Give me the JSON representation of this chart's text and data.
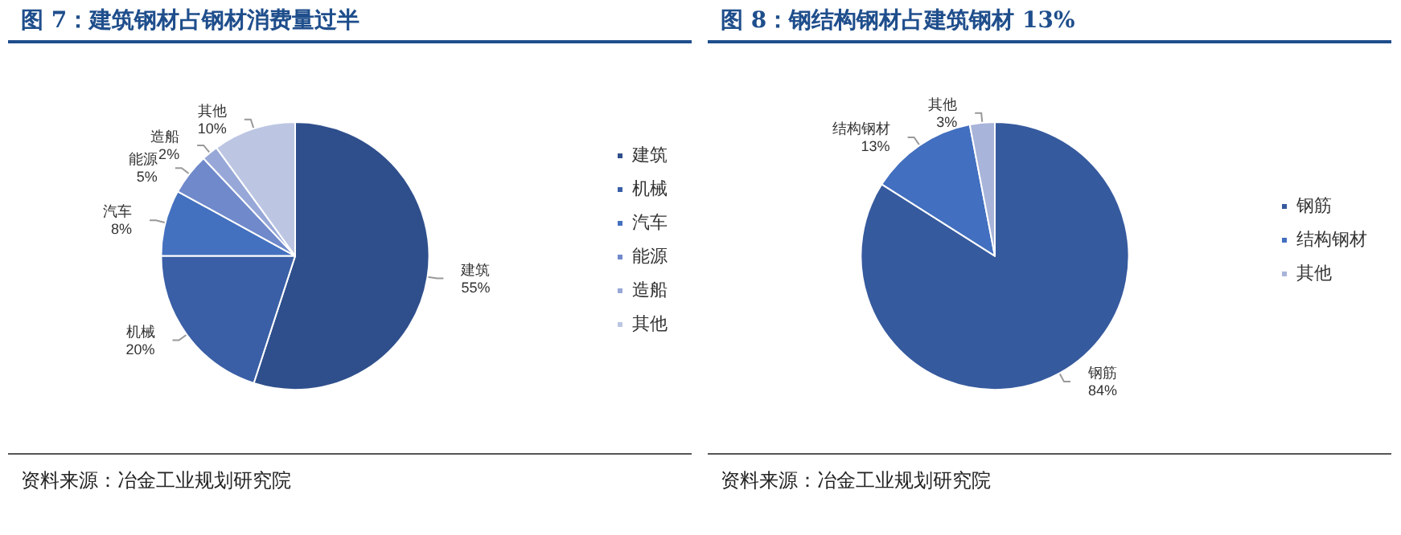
{
  "chart_data": [
    {
      "type": "pie",
      "title": "图 7：建筑钢材占钢材消费量过半",
      "categories": [
        "建筑",
        "机械",
        "汽车",
        "能源",
        "造船",
        "其他"
      ],
      "values": [
        55,
        20,
        8,
        5,
        2,
        10
      ],
      "value_labels": [
        "55%",
        "20%",
        "8%",
        "5%",
        "2%",
        "10%"
      ],
      "colors": [
        "#2f4f8c",
        "#3a5fa6",
        "#4471bf",
        "#6f89cb",
        "#97a8d8",
        "#bcc6e3"
      ],
      "legend": "right",
      "annotations": [
        "资料来源：冶金工业规划研究院"
      ]
    },
    {
      "type": "pie",
      "title": "图 8：钢结构钢材占建筑钢材 13%",
      "categories": [
        "钢筋",
        "结构钢材",
        "其他"
      ],
      "values": [
        84,
        13,
        3
      ],
      "value_labels": [
        "84%",
        "13%",
        "3%"
      ],
      "colors": [
        "#365a9e",
        "#426fbf",
        "#a8b4d9"
      ],
      "legend": "right",
      "annotations": [
        "资料来源：冶金工业规划研究院"
      ]
    }
  ]
}
